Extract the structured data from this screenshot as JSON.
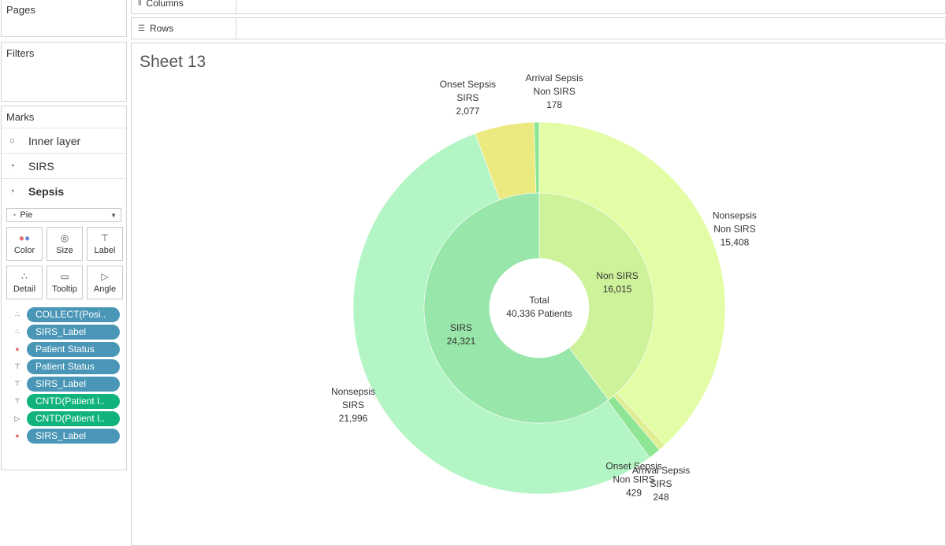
{
  "panels": {
    "pages_title": "Pages",
    "filters_title": "Filters",
    "marks_title": "Marks"
  },
  "shelves": {
    "columns_label": "Columns",
    "rows_label": "Rows"
  },
  "marks": {
    "layers": [
      {
        "label": "Inner layer",
        "icon": "circle-icon"
      },
      {
        "label": "SIRS",
        "icon": "pie-icon"
      },
      {
        "label": "Sepsis",
        "icon": "pie-icon"
      }
    ],
    "mark_type": "Pie",
    "buttons": [
      "Color",
      "Size",
      "Label",
      "Detail",
      "Tooltip",
      "Angle"
    ],
    "pills": [
      {
        "icon": "detail-icon",
        "text": "COLLECT(Posi..",
        "color": "#4a96b7"
      },
      {
        "icon": "detail-icon",
        "text": "SIRS_Label",
        "color": "#4a96b7"
      },
      {
        "icon": "color-icon",
        "text": "Patient Status",
        "color": "#4a96b7"
      },
      {
        "icon": "label-icon",
        "text": "Patient Status",
        "color": "#4a96b7"
      },
      {
        "icon": "label-icon",
        "text": "SIRS_Label",
        "color": "#4a96b7"
      },
      {
        "icon": "label-icon",
        "text": "CNTD(Patient I..",
        "color": "#0fb37b"
      },
      {
        "icon": "angle-icon",
        "text": "CNTD(Patient I..",
        "color": "#0fb37b"
      },
      {
        "icon": "color-icon",
        "text": "SIRS_Label",
        "color": "#4a96b7"
      }
    ]
  },
  "sheet_title": "Sheet 13",
  "chart_data": {
    "type": "pie",
    "center_label": [
      "Total",
      "40,336 Patients"
    ],
    "total": 40336,
    "inner_ring": [
      {
        "name": "Non SIRS",
        "value": 16015,
        "label": "16,015",
        "color": "#cdf29a"
      },
      {
        "name": "SIRS",
        "value": 24321,
        "label": "24,321",
        "color": "#98e6a9"
      }
    ],
    "outer_ring": [
      {
        "lines": [
          "Nonsepsis",
          "Non SIRS",
          "15,408"
        ],
        "value": 15408,
        "color": "#e3fca6"
      },
      {
        "lines": [
          "Arrival Sepsis",
          "SIRS",
          "248"
        ],
        "value": 248,
        "color": "#dfee92"
      },
      {
        "lines": [
          "Onset Sepsis",
          "Non SIRS",
          "429"
        ],
        "value": 429,
        "color": "#8ee594"
      },
      {
        "lines": [
          "Nonsepsis",
          "SIRS",
          "21,996"
        ],
        "value": 21996,
        "color": "#b3f5c5"
      },
      {
        "lines": [
          "Onset Sepsis",
          "SIRS",
          "2,077"
        ],
        "value": 2077,
        "color": "#ebea80"
      },
      {
        "lines": [
          "Arrival Sepsis",
          "Non SIRS",
          "178"
        ],
        "value": 178,
        "color": "#8ee594"
      }
    ]
  }
}
